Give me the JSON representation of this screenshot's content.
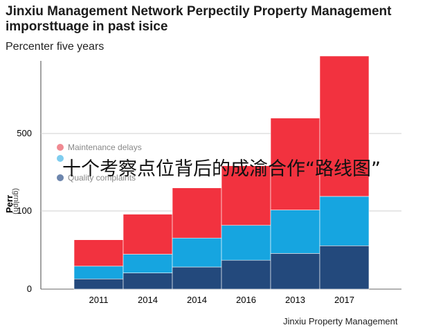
{
  "chart_data": {
    "type": "bar",
    "stacked": true,
    "title": "Jinxiu Management Network Perpectily Property Management imporsttuage in past isice",
    "subtitle": "Percenter five years",
    "ylabel": "Perr",
    "ylabel_secondary": "(grnlpn)",
    "categories": [
      "2011",
      "2014",
      "2014",
      "2016",
      "2013",
      "2017"
    ],
    "yticks": [
      "0",
      "100",
      "500"
    ],
    "series": [
      {
        "name": "Quality complaints",
        "color": "#23497c",
        "values": [
          12,
          19,
          26,
          34,
          42,
          51
        ]
      },
      {
        "name": "",
        "color": "#16a5e0",
        "values": [
          15,
          22,
          34,
          41,
          51,
          58
        ]
      },
      {
        "name": "Maintenance delays",
        "color": "#f2323f",
        "values": [
          31,
          47,
          59,
          70,
          108,
          165
        ]
      }
    ],
    "legend_position": "middle-left",
    "grid": true
  },
  "overlay_text": "十个考察点位背后的成渝合作“路线图”",
  "footer": "Jinxiu Property Management"
}
